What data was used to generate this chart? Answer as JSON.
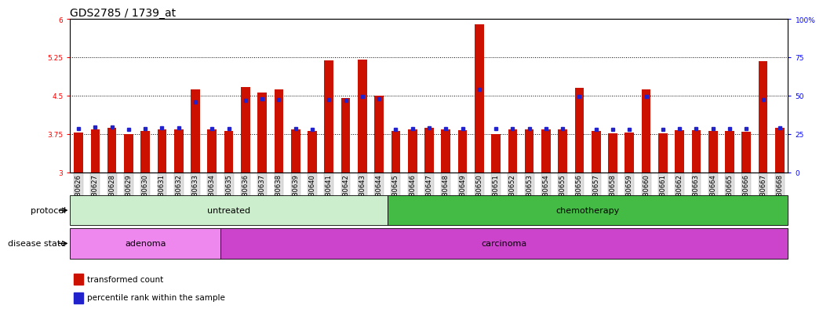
{
  "title": "GDS2785 / 1739_at",
  "samples": [
    "GSM180626",
    "GSM180627",
    "GSM180628",
    "GSM180629",
    "GSM180630",
    "GSM180631",
    "GSM180632",
    "GSM180633",
    "GSM180634",
    "GSM180635",
    "GSM180636",
    "GSM180637",
    "GSM180638",
    "GSM180639",
    "GSM180640",
    "GSM180641",
    "GSM180642",
    "GSM180643",
    "GSM180644",
    "GSM180645",
    "GSM180646",
    "GSM180647",
    "GSM180648",
    "GSM180649",
    "GSM180650",
    "GSM180651",
    "GSM180652",
    "GSM180653",
    "GSM180654",
    "GSM180655",
    "GSM180656",
    "GSM180657",
    "GSM180658",
    "GSM180659",
    "GSM180660",
    "GSM180661",
    "GSM180662",
    "GSM180663",
    "GSM180664",
    "GSM180665",
    "GSM180666",
    "GSM180667",
    "GSM180668"
  ],
  "bar_values": [
    3.78,
    3.85,
    3.88,
    3.76,
    3.82,
    3.84,
    3.84,
    4.62,
    3.84,
    3.82,
    4.68,
    4.57,
    4.63,
    3.84,
    3.82,
    5.2,
    4.46,
    5.21,
    4.5,
    3.82,
    3.84,
    3.87,
    3.84,
    3.83,
    5.9,
    3.76,
    3.84,
    3.84,
    3.84,
    3.84,
    4.65,
    3.81,
    3.77,
    3.78,
    4.62,
    3.77,
    3.83,
    3.83,
    3.81,
    3.81,
    3.8,
    5.18,
    3.87
  ],
  "percentile_values": [
    3.855,
    3.885,
    3.895,
    3.845,
    3.865,
    3.87,
    3.875,
    4.38,
    3.86,
    3.855,
    4.42,
    4.44,
    4.43,
    3.86,
    3.845,
    4.43,
    4.41,
    4.49,
    4.44,
    3.845,
    3.86,
    3.875,
    3.86,
    3.865,
    4.62,
    3.855,
    3.86,
    3.865,
    3.865,
    3.865,
    4.49,
    3.845,
    3.845,
    3.845,
    4.49,
    3.845,
    3.86,
    3.86,
    3.86,
    3.855,
    3.855,
    4.43,
    3.875
  ],
  "ylim": [
    3.0,
    6.0
  ],
  "yticks": [
    3.0,
    3.75,
    4.5,
    5.25,
    6.0
  ],
  "ytick_labels": [
    "3",
    "3.75",
    "4.5",
    "5.25",
    "6"
  ],
  "right_yticks": [
    0,
    25,
    50,
    75,
    100
  ],
  "right_ytick_labels": [
    "0",
    "25",
    "50",
    "75",
    "100%"
  ],
  "dotted_lines": [
    3.75,
    4.5,
    5.25
  ],
  "bar_color": "#cc1100",
  "percentile_color": "#2222cc",
  "protocol_groups": [
    {
      "label": "untreated",
      "start": 0,
      "end": 19,
      "color": "#cceecc"
    },
    {
      "label": "chemotherapy",
      "start": 19,
      "end": 43,
      "color": "#44bb44"
    }
  ],
  "disease_groups": [
    {
      "label": "adenoma",
      "start": 0,
      "end": 9,
      "color": "#ee88ee"
    },
    {
      "label": "carcinoma",
      "start": 9,
      "end": 43,
      "color": "#cc44cc"
    }
  ],
  "legend_items": [
    {
      "label": "transformed count",
      "color": "#cc1100"
    },
    {
      "label": "percentile rank within the sample",
      "color": "#2222cc"
    }
  ],
  "bar_width": 0.55,
  "title_fontsize": 10,
  "tick_fontsize": 6.5,
  "label_fontsize": 8,
  "band_fontsize": 8
}
